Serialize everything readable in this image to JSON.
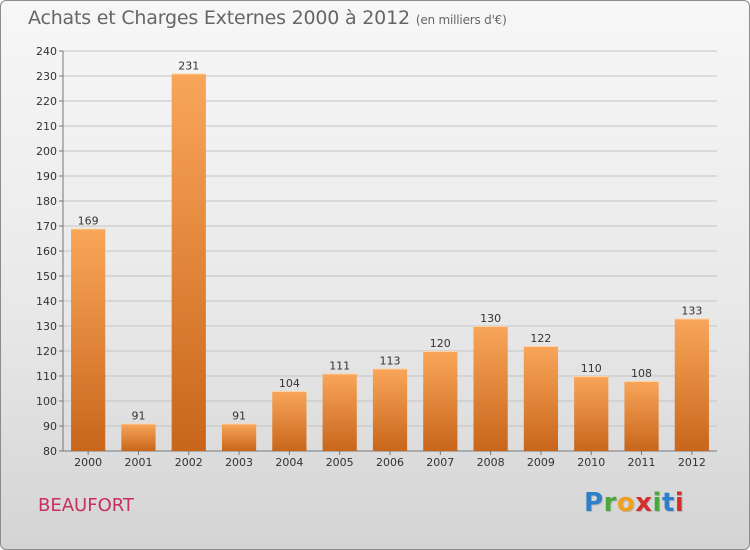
{
  "header": {
    "title": "Achats et Charges Externes 2000 à 2012",
    "subtitle": "(en milliers d'€)"
  },
  "footer": {
    "city": "BEAUFORT",
    "logo_letters": [
      "P",
      "r",
      "o",
      "x",
      "i",
      "t",
      "i"
    ],
    "logo_colors": [
      "#2f7fc8",
      "#4aa83a",
      "#f0a020",
      "#d22f2f",
      "#4aa83a",
      "#2f7fc8",
      "#d22f2f"
    ]
  },
  "chart_data": {
    "type": "bar",
    "title": "Achats et Charges Externes 2000 à 2012",
    "subtitle": "(en milliers d'€)",
    "categories": [
      "2000",
      "2001",
      "2002",
      "2003",
      "2004",
      "2005",
      "2006",
      "2007",
      "2008",
      "2009",
      "2010",
      "2011",
      "2012"
    ],
    "values": [
      169,
      91,
      231,
      91,
      104,
      111,
      113,
      120,
      130,
      122,
      110,
      108,
      133
    ],
    "ylim": [
      80,
      240
    ],
    "yticks": [
      80,
      90,
      100,
      110,
      120,
      130,
      140,
      150,
      160,
      170,
      180,
      190,
      200,
      210,
      220,
      230,
      240
    ],
    "grid": true,
    "legend": "none",
    "bar_color_top": "#f9a65a",
    "bar_color_bottom": "#c8661b"
  }
}
